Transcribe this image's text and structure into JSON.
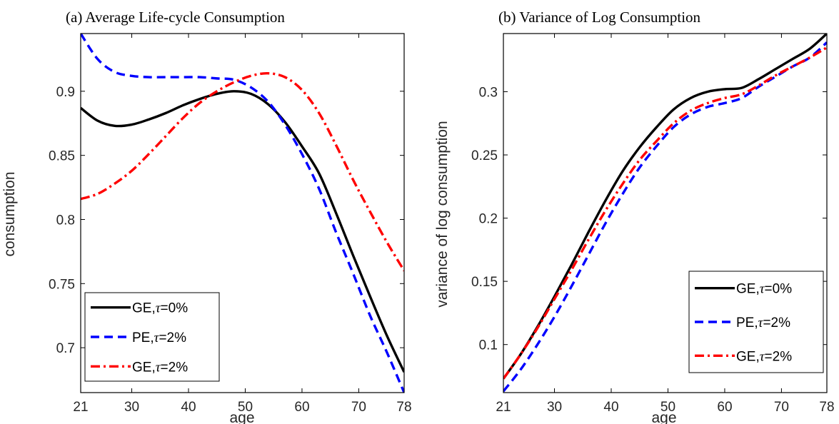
{
  "chart_data": [
    {
      "type": "line",
      "title": "(a)  Average Life-cycle Consumption",
      "xlabel": "age",
      "ylabel": "consumption",
      "xlim": [
        21,
        78
      ],
      "ylim": [
        0.665,
        0.945
      ],
      "xticks": [
        21,
        30,
        40,
        50,
        60,
        70,
        78
      ],
      "yticks": [
        0.7,
        0.75,
        0.8,
        0.85,
        0.9
      ],
      "ytick_labels": [
        "0.7",
        "0.75",
        "0.8",
        "0.85",
        "0.9"
      ],
      "grid": false,
      "legend_position": "bottom-left",
      "series": [
        {
          "name_prefix": "GE,",
          "name_sym": "τ",
          "name_suffix": "=0%",
          "color": "#000000",
          "style": "solid",
          "x": [
            21,
            24,
            27,
            30,
            33,
            36,
            39,
            42,
            45,
            48,
            51,
            54,
            57,
            60,
            63,
            66,
            69,
            72,
            75,
            78
          ],
          "y": [
            0.887,
            0.877,
            0.873,
            0.874,
            0.878,
            0.883,
            0.889,
            0.894,
            0.898,
            0.9,
            0.898,
            0.89,
            0.876,
            0.857,
            0.836,
            0.805,
            0.772,
            0.74,
            0.709,
            0.681
          ]
        },
        {
          "name_prefix": "PE,",
          "name_sym": "τ",
          "name_suffix": "=2%",
          "color": "#0000ff",
          "style": "dashed",
          "x": [
            21,
            24,
            27,
            30,
            33,
            36,
            39,
            42,
            45,
            48,
            51,
            54,
            57,
            60,
            63,
            66,
            69,
            72,
            75,
            78
          ],
          "y": [
            0.945,
            0.925,
            0.915,
            0.912,
            0.911,
            0.911,
            0.911,
            0.911,
            0.91,
            0.909,
            0.903,
            0.892,
            0.874,
            0.851,
            0.824,
            0.79,
            0.758,
            0.725,
            0.696,
            0.665
          ]
        },
        {
          "name_prefix": "GE,",
          "name_sym": "τ",
          "name_suffix": "=2%",
          "color": "#ff0000",
          "style": "dashdot",
          "x": [
            21,
            24,
            27,
            30,
            33,
            36,
            39,
            42,
            45,
            48,
            51,
            54,
            57,
            60,
            63,
            66,
            69,
            72,
            75,
            78
          ],
          "y": [
            0.816,
            0.82,
            0.828,
            0.838,
            0.851,
            0.865,
            0.879,
            0.891,
            0.9,
            0.907,
            0.912,
            0.914,
            0.911,
            0.901,
            0.883,
            0.858,
            0.831,
            0.806,
            0.782,
            0.76
          ]
        }
      ]
    },
    {
      "type": "line",
      "title": "(b)  Variance of Log Consumption",
      "xlabel": "age",
      "ylabel": "variance of log consumption",
      "xlim": [
        21,
        78
      ],
      "ylim": [
        0.062,
        0.346
      ],
      "xticks": [
        21,
        30,
        40,
        50,
        60,
        70,
        78
      ],
      "yticks": [
        0.1,
        0.15,
        0.2,
        0.25,
        0.3
      ],
      "ytick_labels": [
        "0.1",
        "0.15",
        "0.2",
        "0.25",
        "0.3"
      ],
      "grid": false,
      "legend_position": "bottom-right",
      "series": [
        {
          "name_prefix": "GE,",
          "name_sym": "τ",
          "name_suffix": "=0%",
          "color": "#000000",
          "style": "solid",
          "x": [
            21,
            24,
            27,
            30,
            33,
            36,
            39,
            42,
            45,
            48,
            51,
            54,
            57,
            60,
            63,
            66,
            69,
            72,
            75,
            78
          ],
          "y": [
            0.073,
            0.092,
            0.114,
            0.138,
            0.163,
            0.189,
            0.214,
            0.237,
            0.256,
            0.272,
            0.286,
            0.295,
            0.3,
            0.302,
            0.303,
            0.31,
            0.318,
            0.326,
            0.334,
            0.346
          ]
        },
        {
          "name_prefix": "PE,",
          "name_sym": "τ",
          "name_suffix": "=2%",
          "color": "#0000ff",
          "style": "dashed",
          "x": [
            21,
            24,
            27,
            30,
            33,
            36,
            39,
            42,
            45,
            48,
            51,
            54,
            57,
            60,
            63,
            66,
            69,
            72,
            75,
            78
          ],
          "y": [
            0.063,
            0.08,
            0.1,
            0.122,
            0.146,
            0.171,
            0.196,
            0.219,
            0.24,
            0.257,
            0.272,
            0.282,
            0.288,
            0.291,
            0.295,
            0.304,
            0.312,
            0.32,
            0.327,
            0.339
          ]
        },
        {
          "name_prefix": "GE,",
          "name_sym": "τ",
          "name_suffix": "=2%",
          "color": "#ff0000",
          "style": "dashdot",
          "x": [
            21,
            24,
            27,
            30,
            33,
            36,
            39,
            42,
            45,
            48,
            51,
            54,
            57,
            60,
            63,
            66,
            69,
            72,
            75,
            78
          ],
          "y": [
            0.073,
            0.092,
            0.113,
            0.136,
            0.159,
            0.183,
            0.206,
            0.227,
            0.246,
            0.261,
            0.275,
            0.285,
            0.291,
            0.295,
            0.298,
            0.305,
            0.313,
            0.32,
            0.327,
            0.335
          ]
        }
      ]
    }
  ]
}
